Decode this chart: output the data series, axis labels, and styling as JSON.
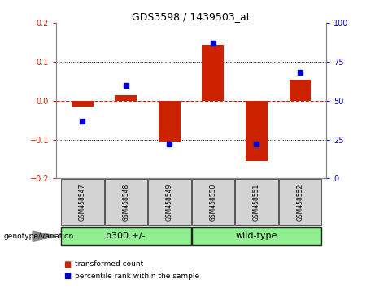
{
  "title": "GDS3598 / 1439503_at",
  "categories": [
    "GSM458547",
    "GSM458548",
    "GSM458549",
    "GSM458550",
    "GSM458551",
    "GSM458552"
  ],
  "red_values": [
    -0.015,
    0.015,
    -0.105,
    0.145,
    -0.155,
    0.055
  ],
  "blue_values": [
    37,
    60,
    22,
    87,
    22,
    68
  ],
  "ylim_left": [
    -0.2,
    0.2
  ],
  "ylim_right": [
    0,
    100
  ],
  "yticks_left": [
    -0.2,
    -0.1,
    0.0,
    0.1,
    0.2
  ],
  "yticks_right": [
    0,
    25,
    50,
    75,
    100
  ],
  "group_labels": [
    "p300 +/-",
    "wild-type"
  ],
  "bar_color": "#cc2200",
  "dot_color": "#0000cc",
  "bg_color": "#ffffff",
  "label_bg": "#d3d3d3",
  "group_bg": "#90ee90",
  "legend_red": "transformed count",
  "legend_blue": "percentile rank within the sample",
  "genotype_label": "genotype/variation",
  "zero_line_color": "#cc2200",
  "left_axis_color": "#cc2200",
  "right_axis_color": "#0000cc"
}
